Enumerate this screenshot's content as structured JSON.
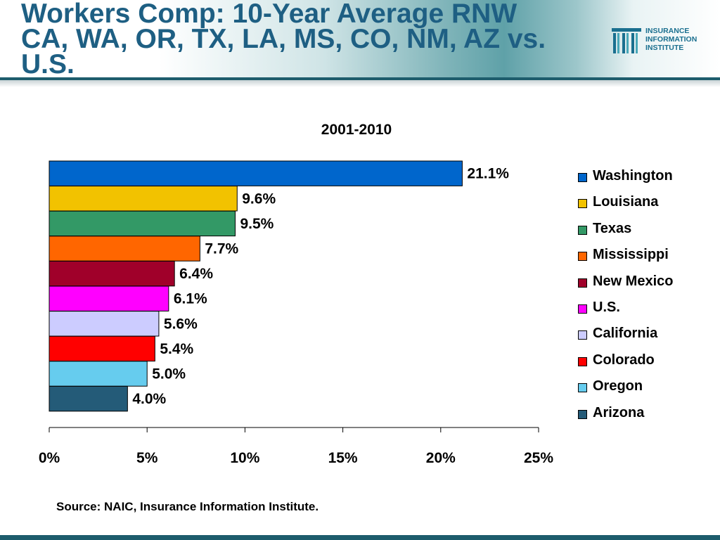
{
  "slide": {
    "title_lines": [
      "Workers Comp: 10-Year Average RNW",
      "CA, WA, OR, TX, LA, MS, CO, NM, AZ vs.",
      "U.S."
    ],
    "source": "Source: NAIC, Insurance Information Institute.",
    "logo": {
      "lines": [
        "INSURANCE",
        "INFORMATION",
        "INSTITUTE"
      ],
      "icon": "iii-logo-icon",
      "color": "#1a6f8f"
    },
    "colors": {
      "title": "#1e5f83",
      "rule": "#1d5c6c"
    }
  },
  "chart_data": {
    "type": "bar",
    "orientation": "horizontal",
    "title": "2001-2010",
    "xlabel": "",
    "ylabel": "",
    "xlim": [
      0,
      25
    ],
    "xticks": [
      0,
      5,
      10,
      15,
      20,
      25
    ],
    "xtick_labels": [
      "0%",
      "5%",
      "10%",
      "15%",
      "20%",
      "25%"
    ],
    "grid": false,
    "legend_position": "right",
    "series": [
      {
        "name": "Washington",
        "value": 21.1,
        "label": "21.1%",
        "color": "#0066cc"
      },
      {
        "name": "Louisiana",
        "value": 9.6,
        "label": "9.6%",
        "color": "#f2c200"
      },
      {
        "name": "Texas",
        "value": 9.5,
        "label": "9.5%",
        "color": "#339966"
      },
      {
        "name": "Mississippi",
        "value": 7.7,
        "label": "7.7%",
        "color": "#ff6600"
      },
      {
        "name": "New Mexico",
        "value": 6.4,
        "label": "6.4%",
        "color": "#a0002a"
      },
      {
        "name": "U.S.",
        "value": 6.1,
        "label": "6.1%",
        "color": "#ff00ff"
      },
      {
        "name": "California",
        "value": 5.6,
        "label": "5.6%",
        "color": "#ccccff"
      },
      {
        "name": "Colorado",
        "value": 5.4,
        "label": "5.4%",
        "color": "#ff0000"
      },
      {
        "name": "Oregon",
        "value": 5.0,
        "label": "5.0%",
        "color": "#66ccee"
      },
      {
        "name": "Arizona",
        "value": 4.0,
        "label": "4.0%",
        "color": "#245b78"
      }
    ]
  }
}
